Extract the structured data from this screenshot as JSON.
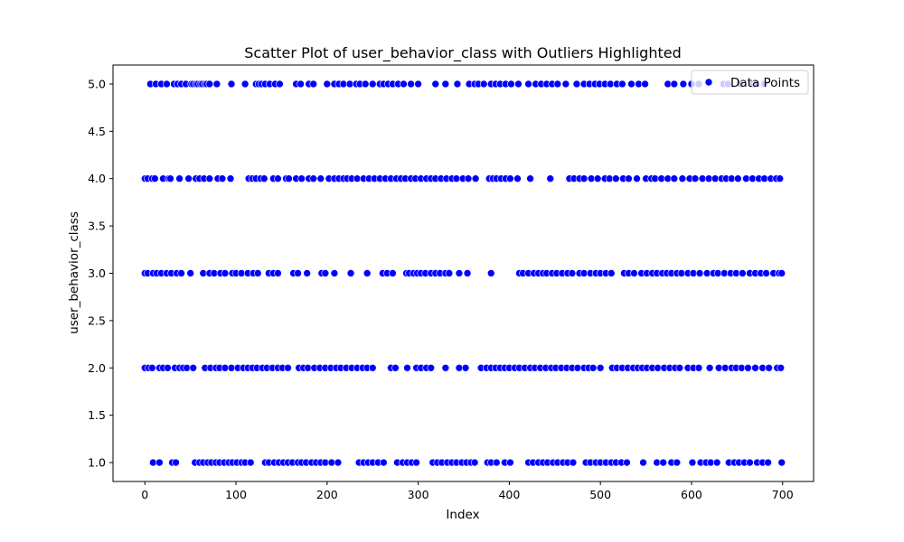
{
  "chart_data": {
    "type": "scatter",
    "title": "Scatter Plot of user_behavior_class with Outliers Highlighted",
    "xlabel": "Index",
    "ylabel": "user_behavior_class",
    "xlim": [
      -35,
      734
    ],
    "ylim": [
      0.8,
      5.2
    ],
    "xticks": [
      0,
      100,
      200,
      300,
      400,
      500,
      600,
      700
    ],
    "yticks": [
      1.0,
      1.5,
      2.0,
      2.5,
      3.0,
      3.5,
      4.0,
      4.5,
      5.0
    ],
    "ytick_labels": [
      "1.0",
      "1.5",
      "2.0",
      "2.5",
      "3.0",
      "3.5",
      "4.0",
      "4.5",
      "5.0"
    ],
    "grid": false,
    "legend": {
      "position": "upper right",
      "entries": [
        "Data Points"
      ]
    },
    "series": [
      {
        "name": "Data Points",
        "color": "#0000ff",
        "marker": "circle",
        "points_by_class": [
          {
            "y": 5.0,
            "x": [
              6,
              12,
              18,
              24,
              32,
              36,
              40,
              45,
              51,
              53,
              56,
              58,
              61,
              63,
              66,
              68,
              71,
              79,
              95,
              110,
              122,
              125,
              128,
              132,
              137,
              143,
              148,
              166,
              171,
              180,
              185,
              200,
              208,
              213,
              218,
              225,
              232,
              236,
              242,
              250,
              258,
              262,
              267,
              272,
              278,
              284,
              292,
              300,
              319,
              330,
              343,
              356,
              362,
              366,
              372,
              380,
              385,
              390,
              396,
              402,
              410,
              421,
              429,
              435,
              441,
              447,
              453,
              462,
              474,
              482,
              488,
              494,
              499,
              505,
              511,
              518,
              524,
              534,
              542,
              549,
              574,
              581,
              591,
              600,
              608,
              635,
              640,
              653,
              667,
              671,
              680
            ]
          },
          {
            "y": 4.0,
            "x": [
              0,
              3,
              8,
              11,
              20,
              26,
              28,
              38,
              48,
              56,
              60,
              65,
              71,
              80,
              85,
              94,
              114,
              118,
              122,
              127,
              131,
              141,
              146,
              155,
              158,
              166,
              172,
              180,
              185,
              193,
              202,
              208,
              213,
              218,
              222,
              227,
              233,
              240,
              246,
              252,
              258,
              264,
              270,
              276,
              281,
              286,
              292,
              297,
              303,
              309,
              314,
              319,
              325,
              331,
              337,
              342,
              349,
              355,
              363,
              378,
              382,
              386,
              391,
              396,
              401,
              409,
              423,
              445,
              466,
              471,
              477,
              482,
              490,
              497,
              505,
              510,
              517,
              525,
              531,
              540,
              550,
              556,
              560,
              567,
              574,
              581,
              590,
              598,
              604,
              612,
              619,
              626,
              633,
              638,
              644,
              651,
              660,
              667,
              674,
              680,
              687,
              693,
              697
            ]
          },
          {
            "y": 3.0,
            "x": [
              0,
              3,
              9,
              13,
              18,
              24,
              29,
              35,
              40,
              50,
              64,
              71,
              76,
              83,
              88,
              96,
              100,
              106,
              113,
              119,
              124,
              136,
              141,
              146,
              163,
              168,
              178,
              194,
              198,
              208,
              226,
              244,
              261,
              266,
              272,
              287,
              290,
              295,
              299,
              303,
              308,
              314,
              319,
              324,
              330,
              334,
              345,
              354,
              380,
              411,
              415,
              421,
              427,
              432,
              437,
              441,
              447,
              452,
              458,
              464,
              469,
              477,
              482,
              489,
              495,
              500,
              506,
              512,
              526,
              531,
              537,
              545,
              551,
              557,
              562,
              568,
              573,
              578,
              584,
              589,
              596,
              602,
              609,
              617,
              624,
              629,
              636,
              643,
              649,
              656,
              664,
              670,
              676,
              682,
              690,
              696,
              699
            ]
          },
          {
            "y": 2.0,
            "x": [
              0,
              4,
              8,
              16,
              20,
              25,
              33,
              38,
              42,
              46,
              53,
              66,
              72,
              78,
              82,
              88,
              95,
              102,
              108,
              113,
              118,
              123,
              129,
              134,
              140,
              146,
              151,
              157,
              169,
              174,
              179,
              186,
              192,
              198,
              204,
              210,
              215,
              221,
              227,
              233,
              239,
              244,
              250,
              270,
              275,
              288,
              298,
              303,
              309,
              314,
              330,
              345,
              352,
              369,
              375,
              380,
              385,
              390,
              395,
              400,
              406,
              411,
              417,
              423,
              428,
              434,
              440,
              446,
              451,
              457,
              463,
              469,
              475,
              482,
              487,
              492,
              500,
              513,
              518,
              524,
              530,
              536,
              541,
              546,
              551,
              557,
              563,
              570,
              576,
              582,
              587,
              596,
              602,
              608,
              620,
              630,
              637,
              644,
              649,
              655,
              662,
              670,
              678,
              685,
              694,
              698
            ]
          },
          {
            "y": 1.0,
            "x": [
              9,
              16,
              30,
              34,
              55,
              60,
              64,
              69,
              73,
              78,
              82,
              87,
              92,
              96,
              101,
              106,
              110,
              116,
              132,
              136,
              142,
              147,
              152,
              157,
              162,
              168,
              172,
              177,
              183,
              188,
              193,
              198,
              205,
              212,
              235,
              240,
              245,
              250,
              256,
              262,
              277,
              283,
              288,
              293,
              298,
              316,
              321,
              326,
              332,
              337,
              342,
              348,
              353,
              358,
              362,
              376,
              380,
              386,
              395,
              401,
              421,
              426,
              432,
              437,
              442,
              448,
              453,
              459,
              464,
              470,
              484,
              489,
              495,
              500,
              506,
              512,
              517,
              523,
              529,
              547,
              562,
              569,
              578,
              584,
              601,
              610,
              616,
              621,
              628,
              641,
              647,
              652,
              658,
              664,
              672,
              678,
              684,
              699
            ]
          }
        ]
      }
    ]
  }
}
